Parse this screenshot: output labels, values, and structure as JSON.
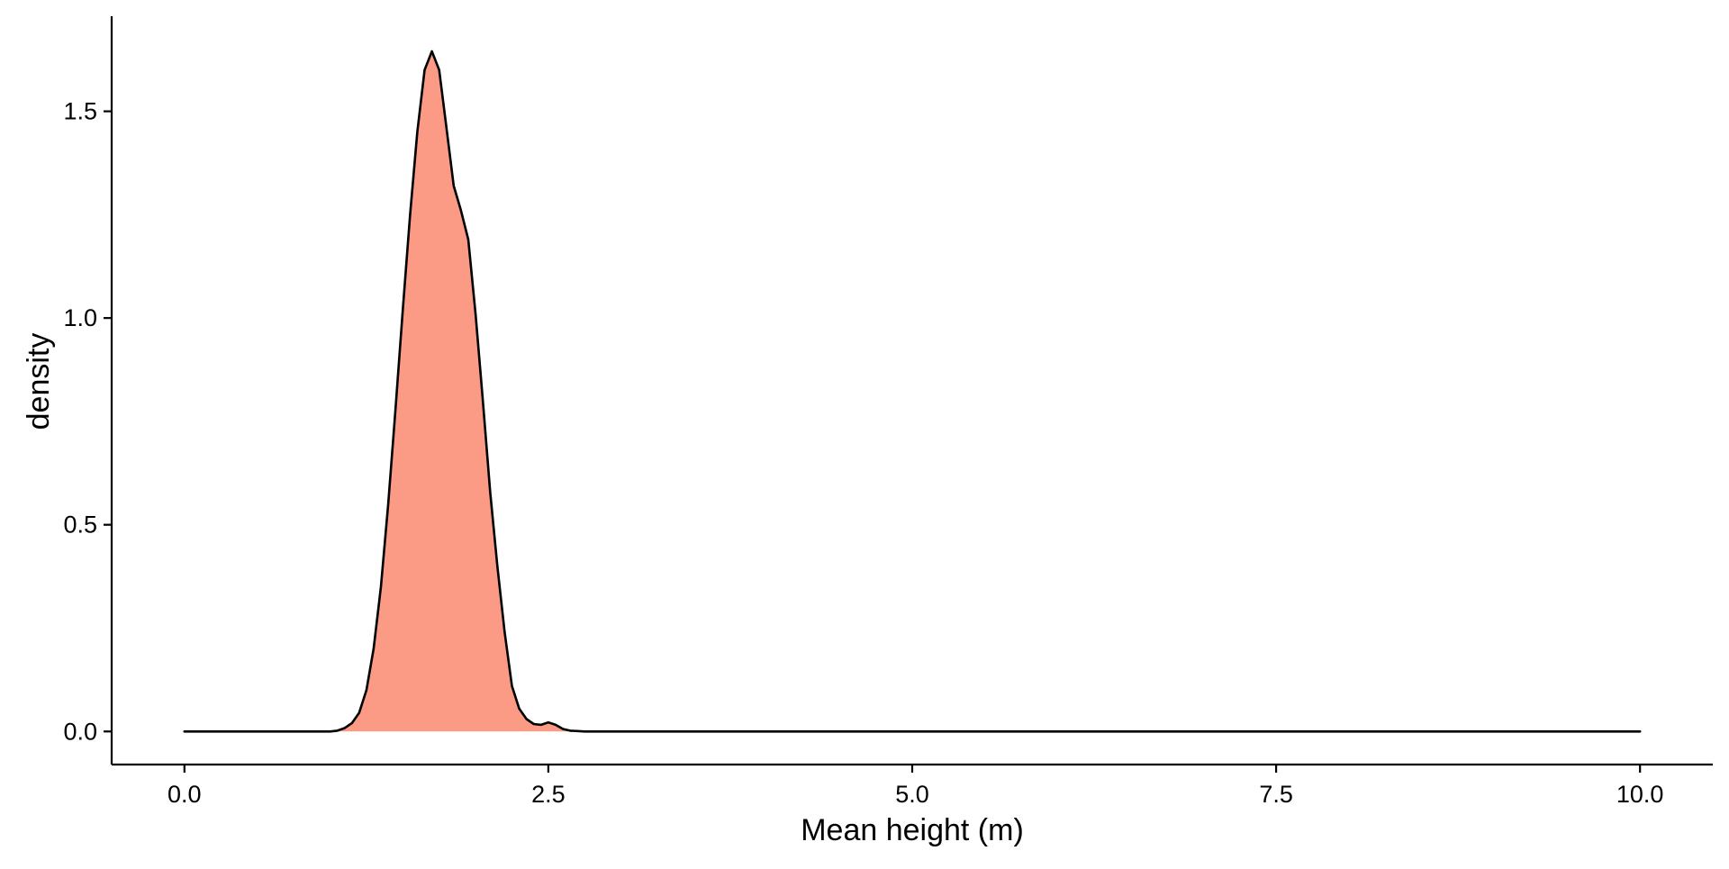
{
  "chart_data": {
    "type": "area",
    "title": "",
    "xlabel": "Mean height (m)",
    "ylabel": "density",
    "xlim": [
      -0.5,
      10.5
    ],
    "ylim": [
      -0.08,
      1.73
    ],
    "x_ticks": [
      0.0,
      2.5,
      5.0,
      7.5,
      10.0
    ],
    "x_tick_labels": [
      "0.0",
      "2.5",
      "5.0",
      "7.5",
      "10.0"
    ],
    "y_ticks": [
      0.0,
      0.5,
      1.0,
      1.5
    ],
    "y_tick_labels": [
      "0.0",
      "0.5",
      "1.0",
      "1.5"
    ],
    "grid": false,
    "legend": "none",
    "fill_color": "#fb9a85",
    "line_color": "#000000",
    "series": [
      {
        "x": [
          0.0,
          0.5,
          1.0,
          1.05,
          1.1,
          1.15,
          1.2,
          1.25,
          1.3,
          1.35,
          1.4,
          1.45,
          1.5,
          1.55,
          1.6,
          1.65,
          1.7,
          1.75,
          1.8,
          1.85,
          1.9,
          1.95,
          2.0,
          2.05,
          2.1,
          2.15,
          2.2,
          2.25,
          2.3,
          2.35,
          2.4,
          2.45,
          2.5,
          2.55,
          2.6,
          2.65,
          2.7,
          2.75,
          2.8,
          2.85,
          2.9,
          3.0,
          4.0,
          5.0,
          6.0,
          7.0,
          8.0,
          9.0,
          10.0
        ],
        "y": [
          0.0,
          0.0,
          0.0,
          0.002,
          0.008,
          0.02,
          0.045,
          0.1,
          0.2,
          0.35,
          0.55,
          0.78,
          1.02,
          1.25,
          1.45,
          1.6,
          1.645,
          1.6,
          1.46,
          1.32,
          1.26,
          1.19,
          1.01,
          0.8,
          0.58,
          0.4,
          0.24,
          0.11,
          0.055,
          0.03,
          0.018,
          0.016,
          0.022,
          0.016,
          0.006,
          0.002,
          0.001,
          0.0,
          0.0,
          0.0,
          0.0,
          0.0,
          0.0,
          0.0,
          0.0,
          0.0,
          0.0,
          0.0,
          0.0
        ]
      }
    ]
  }
}
